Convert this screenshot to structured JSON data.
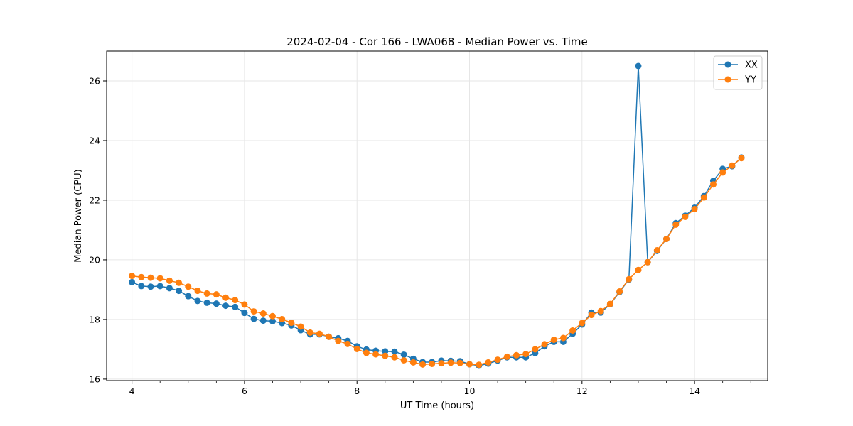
{
  "chart_data": {
    "type": "line",
    "title": "2024-02-04 - Cor 166 - LWA068 - Median Power vs. Time",
    "xlabel": "UT Time (hours)",
    "ylabel": "Median Power (CPU)",
    "xlim": [
      3.55,
      15.3
    ],
    "ylim": [
      15.95,
      27.0
    ],
    "xticks": [
      4,
      6,
      8,
      10,
      12,
      14
    ],
    "xtick_labels": [
      "4",
      "6",
      "8",
      "10",
      "12",
      "14"
    ],
    "yticks": [
      16,
      18,
      20,
      22,
      24,
      26
    ],
    "ytick_labels": [
      "16",
      "18",
      "20",
      "22",
      "24",
      "26"
    ],
    "grid": true,
    "legend_position": "top-right",
    "x": [
      4.0,
      4.167,
      4.333,
      4.5,
      4.667,
      4.833,
      5.0,
      5.167,
      5.333,
      5.5,
      5.667,
      5.833,
      6.0,
      6.167,
      6.333,
      6.5,
      6.667,
      6.833,
      7.0,
      7.167,
      7.333,
      7.5,
      7.667,
      7.833,
      8.0,
      8.167,
      8.333,
      8.5,
      8.667,
      8.833,
      9.0,
      9.167,
      9.333,
      9.5,
      9.667,
      9.833,
      10.0,
      10.167,
      10.333,
      10.5,
      10.667,
      10.833,
      11.0,
      11.167,
      11.333,
      11.5,
      11.667,
      11.833,
      12.0,
      12.167,
      12.333,
      12.5,
      12.667,
      12.833,
      13.0,
      13.167,
      13.333,
      13.5,
      13.667,
      13.833,
      14.0,
      14.167,
      14.333,
      14.5,
      14.667,
      14.833
    ],
    "series": [
      {
        "name": "XX",
        "color": "#1f77b4",
        "values": [
          19.25,
          19.12,
          19.1,
          19.12,
          19.05,
          18.96,
          18.78,
          18.62,
          18.56,
          18.53,
          18.46,
          18.42,
          18.22,
          18.02,
          17.96,
          17.94,
          17.88,
          17.8,
          17.64,
          17.5,
          17.5,
          17.42,
          17.37,
          17.28,
          17.1,
          16.99,
          16.95,
          16.93,
          16.92,
          16.82,
          16.68,
          16.57,
          16.57,
          16.62,
          16.61,
          16.6,
          16.5,
          16.45,
          16.52,
          16.62,
          16.73,
          16.73,
          16.73,
          16.87,
          17.1,
          17.25,
          17.25,
          17.52,
          17.83,
          18.23,
          18.23,
          18.51,
          18.92,
          19.34,
          26.5,
          19.92,
          20.3,
          20.7,
          21.23,
          21.48,
          21.75,
          22.14,
          22.65,
          23.05,
          23.14,
          23.43
        ]
      },
      {
        "name": "YY",
        "color": "#ff7f0e",
        "values": [
          19.46,
          19.42,
          19.4,
          19.38,
          19.3,
          19.23,
          19.1,
          18.96,
          18.87,
          18.84,
          18.73,
          18.65,
          18.5,
          18.27,
          18.2,
          18.11,
          18.01,
          17.89,
          17.76,
          17.56,
          17.52,
          17.42,
          17.28,
          17.18,
          17.01,
          16.88,
          16.83,
          16.78,
          16.73,
          16.63,
          16.56,
          16.49,
          16.51,
          16.53,
          16.55,
          16.54,
          16.5,
          16.48,
          16.56,
          16.65,
          16.75,
          16.8,
          16.84,
          17.0,
          17.17,
          17.32,
          17.38,
          17.63,
          17.88,
          18.15,
          18.28,
          18.52,
          18.94,
          19.35,
          19.66,
          19.92,
          20.32,
          20.7,
          21.18,
          21.44,
          21.7,
          22.09,
          22.53,
          22.93,
          23.16,
          23.41
        ]
      }
    ]
  }
}
